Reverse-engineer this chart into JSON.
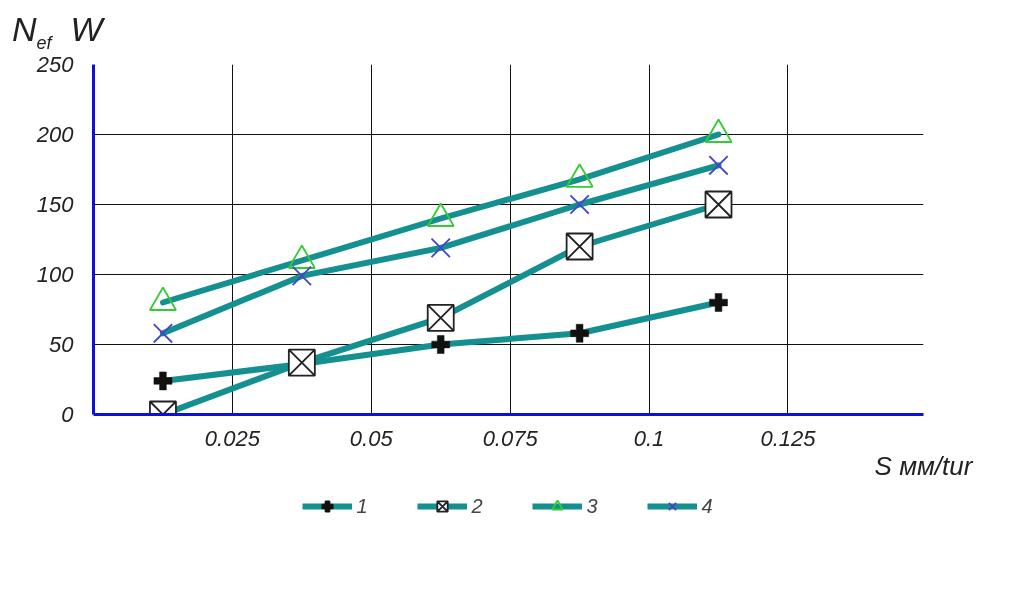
{
  "chart_data": {
    "type": "line",
    "ylabel": "N$_{ef}$ W",
    "xlabel": "S мм/tur",
    "x": [
      0.0125,
      0.0375,
      0.0625,
      0.0875,
      0.1125
    ],
    "series": [
      {
        "name": "1",
        "color": "#159090",
        "marker": "cross",
        "colors": [
          "#111111",
          "#111111",
          "#111111",
          "#111111",
          "#111111"
        ],
        "values": [
          24,
          36,
          50,
          58,
          80
        ]
      },
      {
        "name": "2",
        "color": "#159090",
        "marker": "square",
        "colors": [
          "#222222",
          "#222222",
          "#222222",
          "#222222",
          "#222222"
        ],
        "values": [
          0,
          37,
          69,
          120,
          150
        ]
      },
      {
        "name": "3",
        "color": "#159090",
        "marker": "triangle",
        "colors": [
          "#33cc33",
          "#33cc33",
          "#33cc33",
          "#33cc33",
          "#33cc33"
        ],
        "values": [
          80,
          110,
          140,
          168,
          200
        ]
      },
      {
        "name": "4",
        "color": "#159090",
        "marker": "x",
        "colors": [
          "#4444cc",
          "#4444cc",
          "#4444cc",
          "#4444cc",
          "#4444cc"
        ],
        "values": [
          58,
          99,
          119,
          150,
          178
        ]
      }
    ],
    "xlim": [
      0,
      0.1494
    ],
    "ylim": [
      0,
      250
    ],
    "xticks": [
      0.025,
      0.05,
      0.075,
      0.1,
      0.125
    ],
    "yticks": [
      0,
      50,
      100,
      150,
      200,
      250
    ],
    "grid": true,
    "legend": "bottom"
  }
}
